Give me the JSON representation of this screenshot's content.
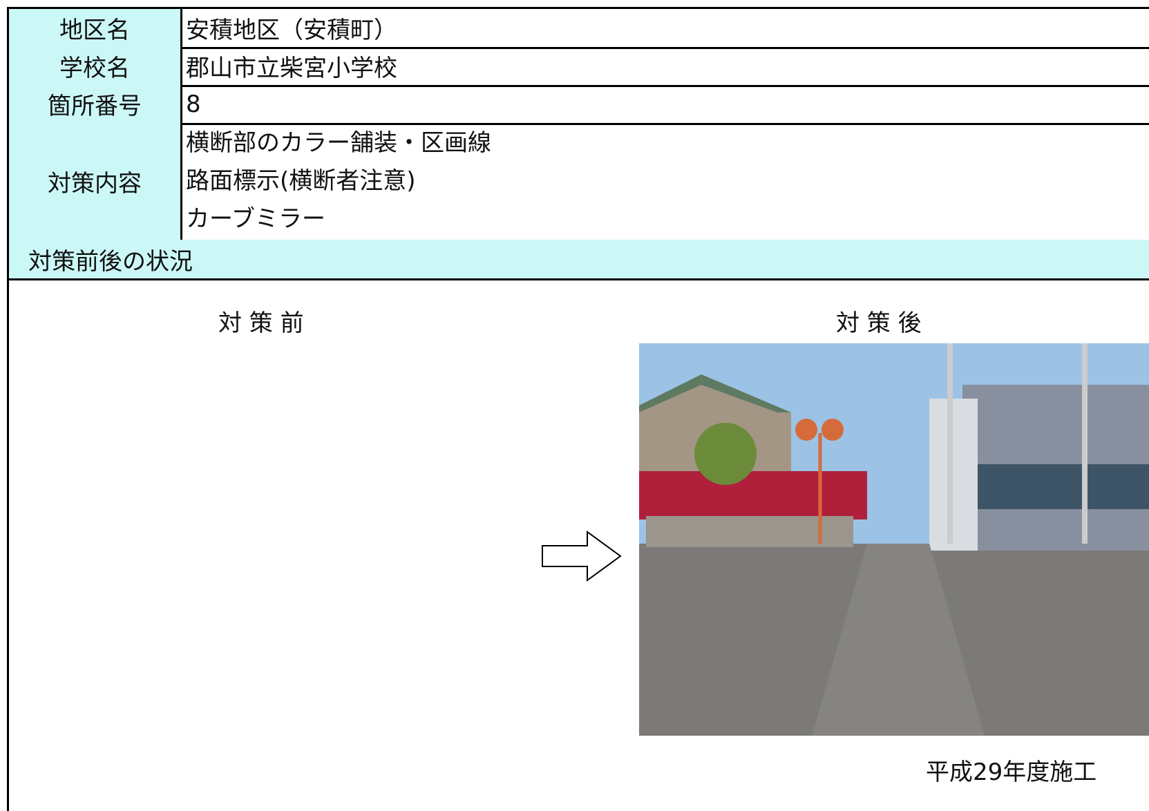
{
  "table": {
    "rows": [
      {
        "label": "地区名",
        "value": "安積地区（安積町）"
      },
      {
        "label": "学校名",
        "value": "郡山市立柴宮小学校"
      },
      {
        "label": "箇所番号",
        "value": "8"
      },
      {
        "label": "対策内容",
        "lines": [
          "横断部のカラー舗装・区画線",
          "路面標示(横断者注意)",
          "カーブミラー"
        ]
      }
    ]
  },
  "section": {
    "title": "対策前後の状況",
    "before_label": "対 策 前",
    "after_label": "対 策 後",
    "caption": "平成29年度施工"
  }
}
